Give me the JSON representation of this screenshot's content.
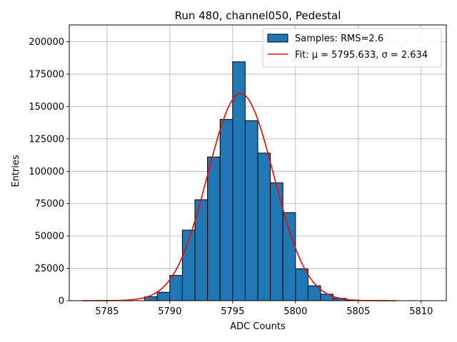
{
  "chart_data": {
    "type": "bar",
    "title": "Run 480, channel050, Pedestal",
    "xlabel": "ADC Counts",
    "ylabel": "Entries",
    "xlim": [
      5782,
      5812
    ],
    "ylim": [
      0,
      213000
    ],
    "xticks": [
      5785,
      5790,
      5795,
      5800,
      5805,
      5810
    ],
    "yticks": [
      0,
      25000,
      50000,
      75000,
      100000,
      125000,
      150000,
      175000,
      200000
    ],
    "grid": true,
    "legend_position": "top-right",
    "bar_color": "#1f77b4",
    "fit_color": "#ff0000",
    "bins": {
      "x": [
        5788,
        5789,
        5790,
        5791,
        5792,
        5793,
        5794,
        5795,
        5796,
        5797,
        5798,
        5799,
        5800,
        5801,
        5802,
        5803,
        5804
      ],
      "counts": [
        3000,
        6500,
        19500,
        54500,
        78000,
        111000,
        140000,
        184500,
        139000,
        114000,
        91000,
        68000,
        24500,
        11500,
        5000,
        1800,
        500
      ],
      "width": 1
    },
    "fit": {
      "mu": 5795.633,
      "sigma": 2.634,
      "peak": 160000,
      "x_range": [
        5783,
        5808
      ]
    },
    "legend": [
      {
        "label": "Samples: RMS=2.6",
        "kind": "patch"
      },
      {
        "label": "Fit: μ = 5795.633, σ = 2.634",
        "kind": "line"
      }
    ]
  }
}
